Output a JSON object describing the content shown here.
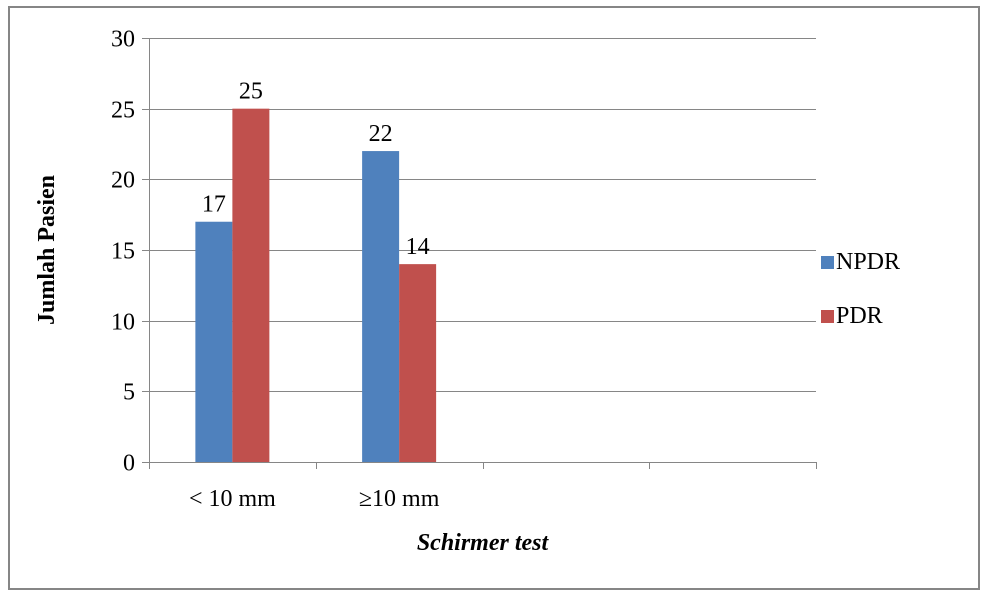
{
  "chart_data": {
    "type": "bar",
    "title": "",
    "xlabel": "Schirmer test",
    "ylabel": "Jumlah Pasien",
    "categories": [
      "< 10 mm",
      "≥10 mm",
      "",
      ""
    ],
    "series": [
      {
        "name": "NPDR",
        "color": "#4f81bd",
        "values": [
          17,
          22,
          null,
          null
        ]
      },
      {
        "name": "PDR",
        "color": "#c0504d",
        "values": [
          25,
          14,
          null,
          null
        ]
      }
    ],
    "ylim": [
      0,
      30
    ],
    "yticks": [
      0,
      5,
      10,
      15,
      20,
      25,
      30
    ],
    "grid": true,
    "gridColor": "#868686",
    "legend_position": "right",
    "data_labels": true
  }
}
